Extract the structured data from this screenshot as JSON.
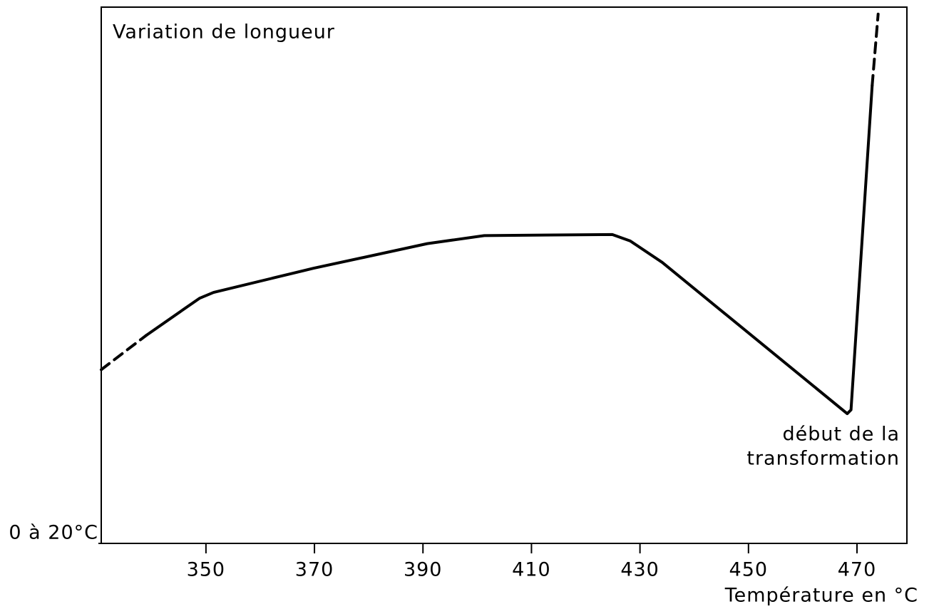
{
  "chart_data": {
    "type": "line",
    "title": "Variation de longueur",
    "x_label": "Température en °C",
    "annotation": [
      "début de la",
      "transformation"
    ],
    "xlim": [
      330.7,
      479.2
    ],
    "xticks": [
      350,
      370,
      390,
      410,
      430,
      450,
      470
    ],
    "ylim": [
      0,
      100
    ],
    "yticks": [
      {
        "value": 0,
        "label": "0 à 20°C"
      }
    ],
    "grid": false,
    "series": [
      {
        "color": "#000000",
        "style": "dashed",
        "x": [
          330.7,
          339.0
        ],
        "values": [
          32.4,
          38.8
        ]
      },
      {
        "color": "#000000",
        "style": "solid",
        "x": [
          339.0,
          348.8,
          351.4,
          369.8,
          390.8,
          401.3,
          424.9,
          428.2,
          434.1,
          468.2,
          468.9,
          472.8
        ],
        "values": [
          38.8,
          45.7,
          46.8,
          51.3,
          55.9,
          57.4,
          57.6,
          56.4,
          52.4,
          24.2,
          24.9,
          85.4
        ]
      },
      {
        "color": "#000000",
        "style": "dashed",
        "x": [
          472.8,
          473.9
        ],
        "values": [
          85.4,
          98.7
        ]
      }
    ]
  }
}
